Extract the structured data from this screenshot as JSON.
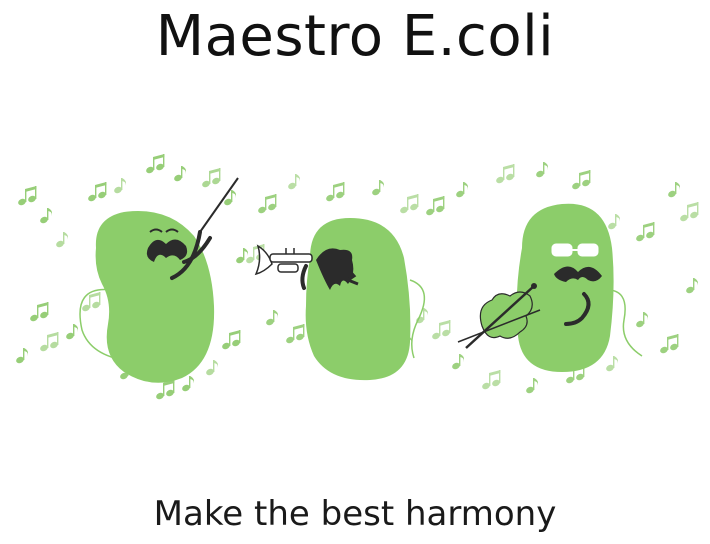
{
  "title": "Maestro E.coli",
  "tagline": "Make the best harmony",
  "colors": {
    "bacteria": "#8ccd6a",
    "bacteria_shadow": "#7fbf5f",
    "notes": "#8cc96a",
    "ink": "#2b2b2b"
  },
  "musicians": [
    {
      "role": "conductor",
      "instrument": "baton-icon"
    },
    {
      "role": "trumpeter",
      "instrument": "trumpet-icon"
    },
    {
      "role": "violinist",
      "instrument": "violin-icon"
    }
  ]
}
